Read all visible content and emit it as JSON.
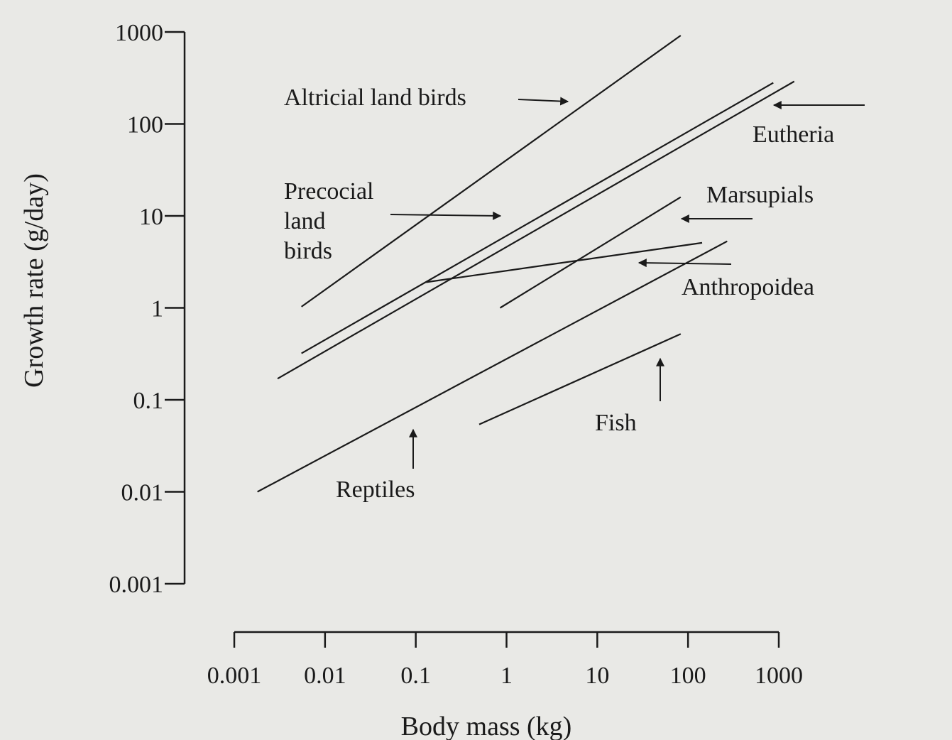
{
  "chart_data": {
    "type": "line",
    "x_label": "Body mass (kg)",
    "y_label": "Growth rate (g/day)",
    "log_x": true,
    "log_y": true,
    "color": "#1a1a1a",
    "xlim": [
      0.001,
      1000
    ],
    "ylim": [
      0.001,
      1000
    ],
    "xticks": [
      0.001,
      0.01,
      0.1,
      1,
      10,
      100,
      1000
    ],
    "yticks": [
      0.001,
      0.01,
      0.1,
      1,
      10,
      100,
      1000
    ],
    "series": [
      {
        "name": "Altricial land birds",
        "x": [
          0.0055,
          83
        ],
        "values": [
          1.03,
          915
        ]
      },
      {
        "name": "Precocial land birds",
        "x": [
          0.0055,
          870
        ],
        "values": [
          0.32,
          280
        ]
      },
      {
        "name": "Eutheria",
        "x": [
          0.003,
          1480
        ],
        "values": [
          0.17,
          290
        ]
      },
      {
        "name": "Marsupials",
        "x": [
          0.85,
          83
        ],
        "values": [
          1.0,
          16
        ]
      },
      {
        "name": "Anthropoidea",
        "x": [
          0.13,
          143
        ],
        "values": [
          1.9,
          5.1
        ]
      },
      {
        "name": "Reptiles",
        "x": [
          0.0018,
          270
        ],
        "values": [
          0.01,
          5.3
        ]
      },
      {
        "name": "Fish",
        "x": [
          0.5,
          83
        ],
        "values": [
          0.054,
          0.52
        ]
      }
    ]
  }
}
